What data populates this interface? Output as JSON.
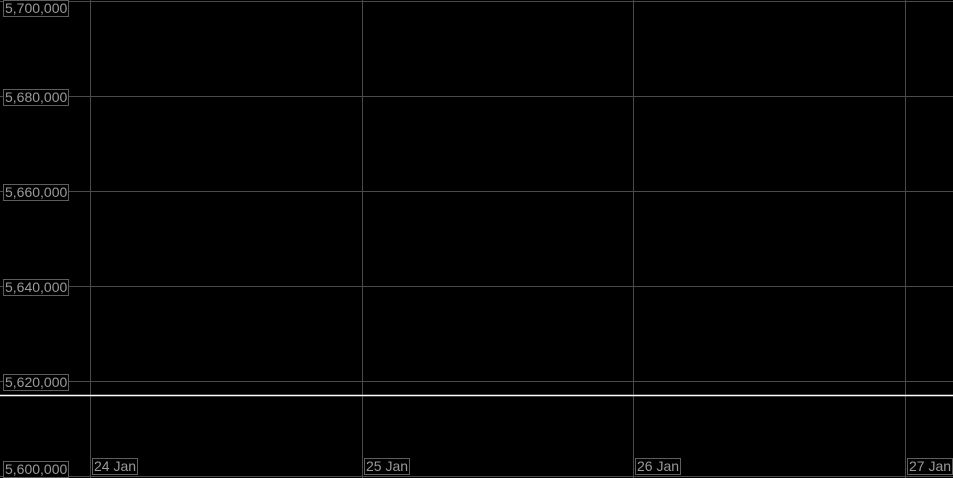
{
  "chart_data": {
    "type": "line",
    "title": "",
    "xlabel": "",
    "ylabel": "",
    "ylim": [
      5600000,
      5700000
    ],
    "yticks": [
      "5,600,000",
      "5,620,000",
      "5,640,000",
      "5,660,000",
      "5,680,000",
      "5,700,000"
    ],
    "ytick_values": [
      5600000,
      5620000,
      5640000,
      5660000,
      5680000,
      5700000
    ],
    "xlim": [
      "23 Jan 16:00",
      "27 Jan 04:15"
    ],
    "xticks": [
      "24 Jan",
      "25 Jan",
      "26 Jan",
      "27 Jan"
    ],
    "grid": true,
    "colors": {
      "background": "#000000",
      "grid": "#4a4a4a",
      "line": "#ffffff",
      "label_text": "#9a9a9a"
    },
    "series": [
      {
        "x": [
          "23 Jan 16:00",
          "27 Jan 04:15"
        ],
        "y": [
          5617000,
          5617000
        ]
      }
    ]
  }
}
